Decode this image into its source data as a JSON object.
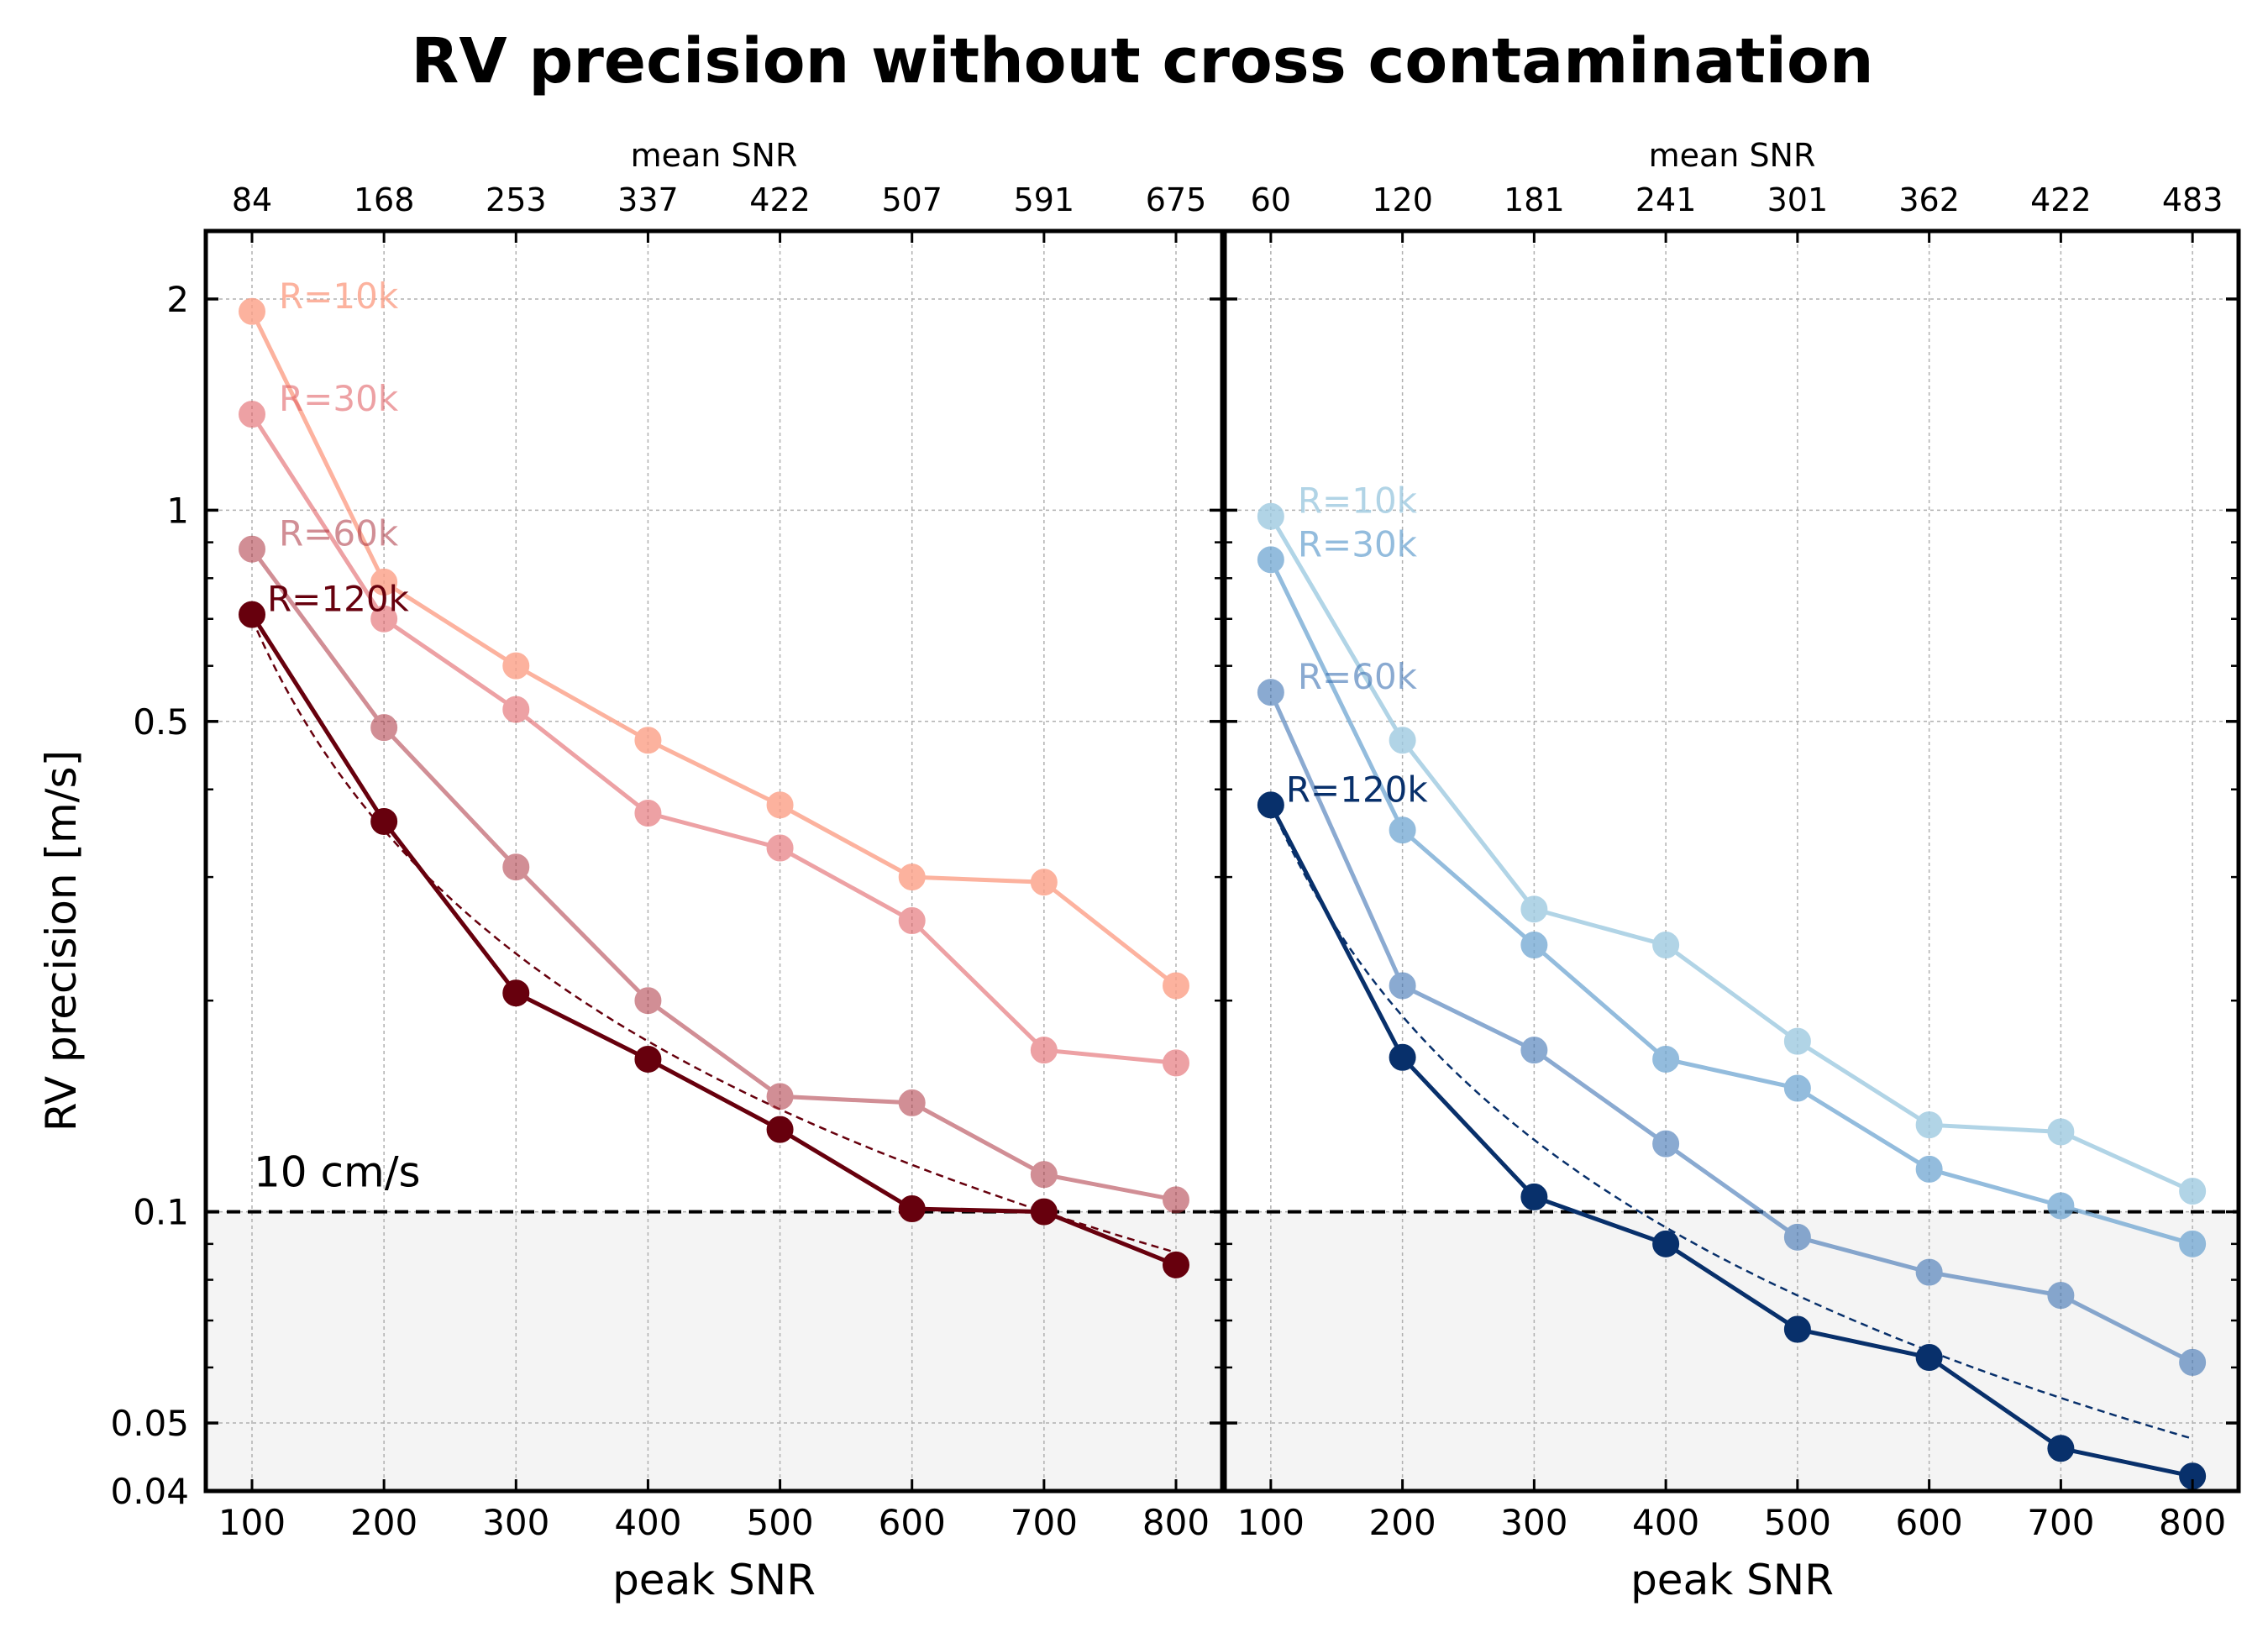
{
  "chart_data": {
    "title": "RV precision without cross contamination",
    "ylabel": "RV precision [m/s]",
    "ylim": [
      0.04,
      2.5
    ],
    "yscale": "log",
    "yticks": [
      {
        "value": 2,
        "label": "2"
      },
      {
        "value": 1,
        "label": "1"
      },
      {
        "value": 0.5,
        "label": "0.5"
      },
      {
        "value": 0.1,
        "label": "0.1"
      },
      {
        "value": 0.05,
        "label": "0.05"
      },
      {
        "value": 0.04,
        "label": "0.04"
      }
    ],
    "reference": {
      "value": 0.1,
      "label": "10 cm/s"
    },
    "grid": true,
    "panels": [
      {
        "type": "line",
        "xlabel": "peak SNR",
        "xlim": [
          65,
          835
        ],
        "x": [
          100,
          200,
          300,
          400,
          500,
          600,
          700,
          800
        ],
        "xtick_labels": [
          "100",
          "200",
          "300",
          "400",
          "500",
          "600",
          "700",
          "800"
        ],
        "top_xlabel": "mean SNR",
        "top_tick_labels": [
          "84",
          "168",
          "253",
          "337",
          "422",
          "507",
          "591",
          "675"
        ],
        "fit_amplitude": 0.7,
        "series": [
          {
            "name": "R=10k",
            "color": "#fc9f87",
            "alpha": 0.8,
            "values": [
              1.92,
              0.79,
              0.6,
              0.47,
              0.38,
              0.3,
              0.295,
              0.21
            ]
          },
          {
            "name": "R=30k",
            "color": "#e26368",
            "alpha": 0.6,
            "values": [
              1.37,
              0.7,
              0.52,
              0.37,
              0.33,
              0.26,
              0.17,
              0.163
            ]
          },
          {
            "name": "R=60k",
            "color": "#ac333f",
            "alpha": 0.55,
            "values": [
              0.88,
              0.49,
              0.31,
              0.2,
              0.146,
              0.143,
              0.113,
              0.104
            ]
          },
          {
            "name": "R=120k",
            "color": "#67000d",
            "alpha": 1.0,
            "values": [
              0.71,
              0.36,
              0.205,
              0.165,
              0.131,
              0.101,
              0.1,
              0.084
            ]
          }
        ]
      },
      {
        "type": "line",
        "xlabel": "peak SNR",
        "xlim": [
          65,
          835
        ],
        "x": [
          100,
          200,
          300,
          400,
          500,
          600,
          700,
          800
        ],
        "xtick_labels": [
          "100",
          "200",
          "300",
          "400",
          "500",
          "600",
          "700",
          "800"
        ],
        "top_xlabel": "mean SNR",
        "top_tick_labels": [
          "60",
          "120",
          "181",
          "241",
          "301",
          "362",
          "422",
          "483"
        ],
        "fit_amplitude": 0.38,
        "series": [
          {
            "name": "R=10k",
            "color": "#9ecae1",
            "alpha": 0.8,
            "values": [
              0.98,
              0.47,
              0.27,
              0.24,
              0.175,
              0.133,
              0.13,
              0.107
            ]
          },
          {
            "name": "R=30k",
            "color": "#6fa6d2",
            "alpha": 0.75,
            "values": [
              0.85,
              0.35,
              0.24,
              0.165,
              0.15,
              0.115,
              0.102,
              0.09
            ]
          },
          {
            "name": "R=60k",
            "color": "#3d72b3",
            "alpha": 0.6,
            "values": [
              0.55,
              0.21,
              0.17,
              0.125,
              0.092,
              0.082,
              0.076,
              0.061
            ]
          },
          {
            "name": "R=120k",
            "color": "#08306b",
            "alpha": 1.0,
            "values": [
              0.38,
              0.166,
              0.105,
              0.09,
              0.068,
              0.062,
              0.046,
              0.042
            ]
          }
        ]
      }
    ]
  }
}
